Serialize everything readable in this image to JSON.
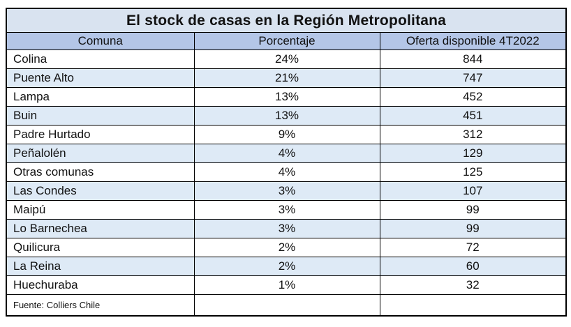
{
  "table": {
    "title": "El stock de casas en la Región Metropolitana",
    "columns": [
      "Comuna",
      "Porcentaje",
      "Oferta disponible 4T2022"
    ],
    "rows": [
      [
        "Colina",
        "24%",
        "844"
      ],
      [
        "Puente Alto",
        "21%",
        "747"
      ],
      [
        "Lampa",
        "13%",
        "452"
      ],
      [
        "Buin",
        "13%",
        "451"
      ],
      [
        "Padre Hurtado",
        "9%",
        "312"
      ],
      [
        "Peñalolén",
        "4%",
        "129"
      ],
      [
        "Otras comunas",
        "4%",
        "125"
      ],
      [
        "Las Condes",
        "3%",
        "107"
      ],
      [
        "Maipú",
        "3%",
        "99"
      ],
      [
        "Lo Barnechea",
        "3%",
        "99"
      ],
      [
        "Quilicura",
        "2%",
        "72"
      ],
      [
        "La Reina",
        "2%",
        "60"
      ],
      [
        "Huechuraba",
        "1%",
        "32"
      ]
    ],
    "source": "Fuente: Colliers Chile"
  },
  "colors": {
    "title_background": "#d9e3f0",
    "header_background": "#b4c6e7",
    "band_background": "#deeaf6",
    "row_background": "#ffffff",
    "border": "#000000",
    "text": "#111111"
  },
  "chart_data": {
    "type": "table",
    "title": "El stock de casas en la Región Metropolitana",
    "columns": [
      "Comuna",
      "Porcentaje",
      "Oferta disponible 4T2022"
    ],
    "categories": [
      "Colina",
      "Puente Alto",
      "Lampa",
      "Buin",
      "Padre Hurtado",
      "Peñalolén",
      "Otras comunas",
      "Las Condes",
      "Maipú",
      "Lo Barnechea",
      "Quilicura",
      "La Reina",
      "Huechuraba"
    ],
    "series": [
      {
        "name": "Porcentaje",
        "values": [
          24,
          21,
          13,
          13,
          9,
          4,
          4,
          3,
          3,
          3,
          2,
          2,
          1
        ],
        "unit": "%"
      },
      {
        "name": "Oferta disponible 4T2022",
        "values": [
          844,
          747,
          452,
          451,
          312,
          129,
          125,
          107,
          99,
          99,
          72,
          60,
          32
        ]
      }
    ],
    "source": "Fuente: Colliers Chile"
  }
}
